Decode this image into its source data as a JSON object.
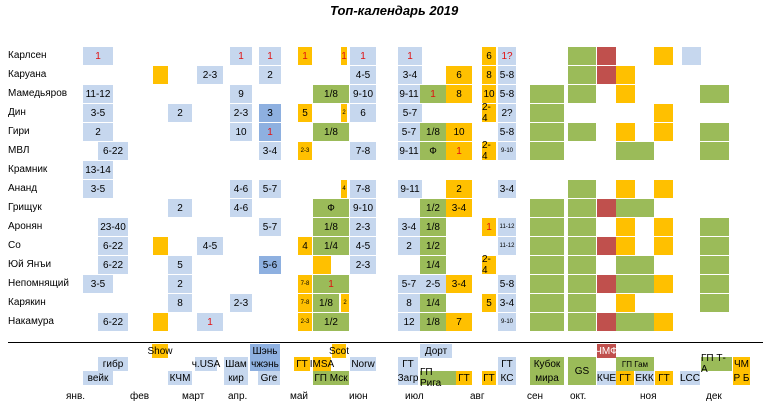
{
  "title": "Топ-календарь 2019",
  "players": [
    "Карлсен",
    "Каруана",
    "Мамедьяров",
    "Дин",
    "Гири",
    "МВЛ",
    "Крамник",
    "Ананд",
    "Грищук",
    "Аронян",
    "Со",
    "Юй Янъи",
    "Непомнящий",
    "Карякин",
    "Накамура"
  ],
  "cells": [
    [
      "1",
      "1",
      "1",
      "1",
      "1",
      "1",
      "1",
      "6",
      "1?"
    ],
    [
      "2-3",
      "2",
      "4-5",
      "3-4",
      "6",
      "8",
      "5-8"
    ],
    [
      "11-12",
      "9",
      "1/8",
      "9-10",
      "9-11",
      "1",
      "8",
      "10",
      "5-8"
    ],
    [
      "3-5",
      "2",
      "2-3",
      "3",
      "5",
      "2",
      "6",
      "5-7",
      "2-4",
      "2?"
    ],
    [
      "2",
      "10",
      "1",
      "1/8",
      "5-7",
      "1/8",
      "10",
      "5-8"
    ],
    [
      "6-22",
      "3-4",
      "2-3",
      "7-8",
      "9-11",
      "Ф",
      "1",
      "2-4",
      "9-10"
    ],
    [
      "13-14"
    ],
    [
      "3-5",
      "4-6",
      "5-7",
      "4",
      "7-8",
      "9-11",
      "2",
      "3-4"
    ],
    [
      "2",
      "4-6",
      "Ф",
      "9-10",
      "1/2",
      "3-4"
    ],
    [
      "23-40",
      "5-7",
      "1/8",
      "2-3",
      "3-4",
      "1/8",
      "1",
      "11-12"
    ],
    [
      "6-22",
      "4-5",
      "4",
      "1/4",
      "4-5",
      "2",
      "1/2",
      "11-12"
    ],
    [
      "6-22",
      "5",
      "5-6",
      "2-3",
      "1/4",
      "2-4"
    ],
    [
      "3-5",
      "2",
      "7-8",
      "1",
      "5-7",
      "2-5",
      "3-4",
      "5-8"
    ],
    [
      "8",
      "2-3",
      "7-8",
      "1/8",
      "2",
      "8",
      "1/4",
      "5",
      "3-4"
    ],
    [
      "6-22",
      "1",
      "2-3",
      "1/2",
      "12",
      "1/8",
      "7",
      "9-10"
    ]
  ],
  "legend": {
    "gibr": "гибр",
    "veik": "вейк",
    "show": "Show",
    "kchm": "КЧМ",
    "chusa": "ч.USA",
    "sham": "Шам",
    "kir": "кир",
    "shen": "Шэнь",
    "chzhen": "чжэнь",
    "gre": "Gre",
    "gt1": "ГТ",
    "scot": "Scot",
    "imsa": "IMSA",
    "gpmsk": "ГП Мск",
    "norw": "Norw",
    "gt2": "ГТ",
    "zagr": "Загр",
    "dort": "Дорт",
    "gpriga": "ГП Рига",
    "gt3": "ГТ",
    "gt4": "ГТ",
    "gt5": "ГТ",
    "ks": "КС",
    "kubok": "Кубок",
    "mira": "мира",
    "gs": "GS",
    "chmf": "ЧМФ",
    "kche": "КЧЕ",
    "gpgam": "ГП Гам",
    "gt6": "ГТ",
    "ekk": "ЕКК",
    "gt7": "ГТ",
    "lcc": "LCC",
    "gpta": "ГП Т-А",
    "chm": "ЧМ",
    "rb": "Р Б"
  },
  "months": [
    "янв.",
    "фев",
    "март",
    "апр.",
    "май",
    "июн",
    "июл",
    "авг",
    "сен",
    "окт.",
    "ноя",
    "дек"
  ]
}
